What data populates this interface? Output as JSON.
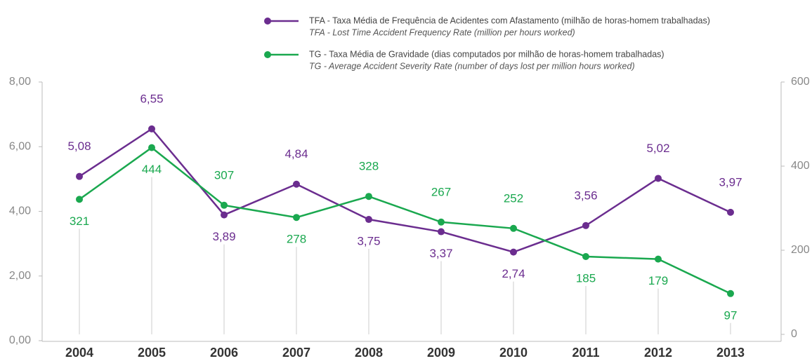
{
  "chart_data": {
    "type": "line",
    "categories": [
      "2004",
      "2005",
      "2006",
      "2007",
      "2008",
      "2009",
      "2010",
      "2011",
      "2012",
      "2013"
    ],
    "series": [
      {
        "name": "TFA - Taxa Média de Frequência de Acidentes com Afastamento (milhão de horas-homem trabalhadas)",
        "subname": "TFA - Lost Time Accident Frequency Rate (million per hours worked)",
        "color": "#6b2d8f",
        "axis": "y",
        "values": [
          5.08,
          6.55,
          3.89,
          4.84,
          3.75,
          3.37,
          2.74,
          3.56,
          5.02,
          3.97
        ],
        "value_labels": [
          "5,08",
          "6,55",
          "3,89",
          "4,84",
          "3,75",
          "3,37",
          "2,74",
          "3,56",
          "5,02",
          "3,97"
        ]
      },
      {
        "name": "TG - Taxa Média de Gravidade (dias computados por milhão de horas-homem trabalhadas)",
        "subname": "TG - Average Accident Severity Rate (number of days lost per million hours worked)",
        "color": "#1aa84f",
        "axis": "y2",
        "values": [
          321,
          444,
          307,
          278,
          328,
          267,
          252,
          185,
          179,
          97
        ]
      }
    ],
    "ylim": [
      0,
      8
    ],
    "yticks": [
      {
        "value": 0,
        "label": "0,00"
      },
      {
        "value": 2,
        "label": "2,00"
      },
      {
        "value": 4,
        "label": "4,00"
      },
      {
        "value": 6,
        "label": "6,00"
      },
      {
        "value": 8,
        "label": "8,00"
      }
    ],
    "y2lim": [
      0,
      600
    ],
    "y2ticks": [
      0,
      200,
      400,
      600
    ]
  }
}
